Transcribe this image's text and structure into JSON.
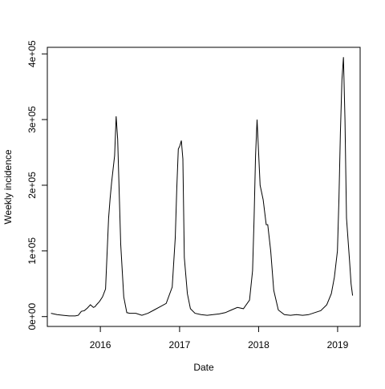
{
  "chart_data": {
    "type": "line",
    "title": "",
    "xlabel": "Date",
    "ylabel": "Weekly incidence",
    "x_tick_labels": [
      "2016",
      "2017",
      "2018",
      "2019"
    ],
    "x_tick_values": [
      "2016-01-01",
      "2017-01-01",
      "2018-01-01",
      "2019-01-01"
    ],
    "y_tick_labels": [
      "0e+00",
      "1e+05",
      "2e+05",
      "3e+05",
      "4e+05"
    ],
    "y_tick_values": [
      0,
      100000,
      200000,
      300000,
      400000
    ],
    "xlim": [
      "2015-05-01",
      "2019-04-15"
    ],
    "ylim": [
      -15000,
      410000
    ],
    "grid": false,
    "legend": "none",
    "line_color": "#000000",
    "series": [
      {
        "x": [
          "2015-05-18",
          "2015-06-15",
          "2015-07-13",
          "2015-08-10",
          "2015-09-07",
          "2015-09-21",
          "2015-10-05",
          "2015-10-19",
          "2015-11-02",
          "2015-11-16",
          "2015-11-30",
          "2015-12-07",
          "2015-12-14",
          "2015-12-28",
          "2016-01-11",
          "2016-01-25",
          "2016-02-08",
          "2016-02-15",
          "2016-02-22",
          "2016-03-07",
          "2016-03-14",
          "2016-03-21",
          "2016-04-04",
          "2016-04-18",
          "2016-05-02",
          "2016-05-16",
          "2016-06-13",
          "2016-07-11",
          "2016-08-08",
          "2016-09-05",
          "2016-10-03",
          "2016-10-31",
          "2016-11-28",
          "2016-12-12",
          "2016-12-19",
          "2016-12-26",
          "2017-01-02",
          "2017-01-09",
          "2017-01-16",
          "2017-01-23",
          "2017-02-06",
          "2017-02-20",
          "2017-03-13",
          "2017-04-10",
          "2017-05-08",
          "2017-06-05",
          "2017-07-03",
          "2017-07-31",
          "2017-08-28",
          "2017-09-25",
          "2017-10-23",
          "2017-11-20",
          "2017-12-04",
          "2017-12-11",
          "2017-12-18",
          "2017-12-25",
          "2018-01-01",
          "2018-01-08",
          "2018-01-22",
          "2018-02-05",
          "2018-02-12",
          "2018-02-26",
          "2018-03-12",
          "2018-04-02",
          "2018-04-30",
          "2018-05-28",
          "2018-06-25",
          "2018-07-23",
          "2018-08-20",
          "2018-09-17",
          "2018-10-15",
          "2018-11-12",
          "2018-12-03",
          "2018-12-17",
          "2018-12-31",
          "2019-01-07",
          "2019-01-14",
          "2019-01-21",
          "2019-01-28",
          "2019-02-04",
          "2019-02-11",
          "2019-02-25",
          "2019-03-04",
          "2019-03-11"
        ],
        "y": [
          5000,
          3000,
          2000,
          1000,
          1000,
          2000,
          8000,
          9000,
          13000,
          18000,
          14000,
          15000,
          18000,
          23000,
          30000,
          42000,
          150000,
          180000,
          205000,
          245000,
          305000,
          270000,
          110000,
          30000,
          6000,
          5000,
          5000,
          2000,
          5000,
          10000,
          15000,
          20000,
          45000,
          120000,
          195000,
          255000,
          260000,
          268000,
          240000,
          90000,
          35000,
          12000,
          5000,
          3000,
          2000,
          3000,
          4000,
          6000,
          10000,
          14000,
          12000,
          25000,
          70000,
          150000,
          245000,
          300000,
          250000,
          200000,
          178000,
          140000,
          140000,
          100000,
          40000,
          10000,
          3000,
          2000,
          3000,
          2000,
          3000,
          6000,
          9000,
          18000,
          35000,
          60000,
          100000,
          180000,
          280000,
          360000,
          395000,
          300000,
          150000,
          85000,
          50000,
          32000
        ]
      }
    ]
  }
}
